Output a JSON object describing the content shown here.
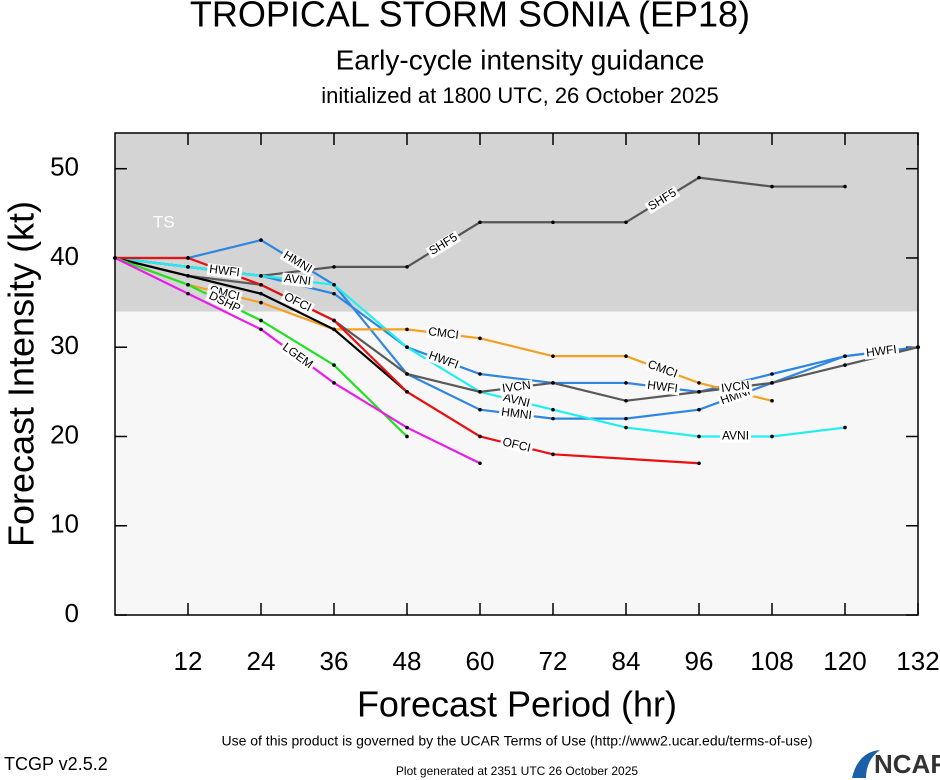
{
  "chart_data": {
    "type": "line",
    "title": "TROPICAL STORM SONIA (EP18)",
    "subtitle": "Early-cycle intensity guidance",
    "init_text": "initialized at 1800 UTC, 26 October 2025",
    "x_label": "Forecast Period (hr)",
    "y_label": "Forecast Intensity (kt)",
    "xlim": [
      0,
      132
    ],
    "xticks": [
      12,
      24,
      36,
      48,
      60,
      72,
      84,
      96,
      108,
      120,
      132
    ],
    "ylim": [
      0,
      54
    ],
    "yticks": [
      0,
      10,
      20,
      30,
      40,
      50
    ],
    "bands": [
      {
        "label": "TS",
        "from": 34,
        "to": 54,
        "color": "#d4d4d4"
      }
    ],
    "background": "#f7f7f7",
    "series": [
      {
        "name": "SHF5",
        "color": "#555555",
        "x": [
          0,
          12,
          24,
          36,
          48,
          60,
          72,
          84,
          96,
          108,
          120
        ],
        "values": [
          40,
          39,
          38,
          39,
          39,
          44,
          44,
          44,
          49,
          48,
          48
        ]
      },
      {
        "name": "HMNI",
        "color": "#2f86e0",
        "x": [
          0,
          12,
          24,
          36,
          48,
          60,
          72,
          84,
          96,
          108,
          120,
          132
        ],
        "values": [
          40,
          40,
          42,
          37,
          27,
          23,
          22,
          22,
          23,
          26,
          29,
          30
        ]
      },
      {
        "name": "HWFI",
        "color": "#2f86e0",
        "x": [
          0,
          12,
          24,
          36,
          48,
          60,
          72,
          84,
          96,
          108,
          120,
          132
        ],
        "values": [
          40,
          39,
          38,
          36,
          30,
          27,
          26,
          26,
          25,
          27,
          29,
          30
        ]
      },
      {
        "name": "AVNI",
        "color": "#22eef0",
        "x": [
          0,
          12,
          24,
          36,
          48,
          60,
          72,
          84,
          96,
          108,
          120
        ],
        "values": [
          40,
          39,
          38,
          37,
          30,
          25,
          23,
          21,
          20,
          20,
          21
        ]
      },
      {
        "name": "CMCI",
        "color": "#f5a022",
        "x": [
          0,
          12,
          24,
          36,
          48,
          60,
          72,
          84,
          96,
          108
        ],
        "values": [
          40,
          37,
          35,
          32,
          32,
          31,
          29,
          29,
          26,
          24
        ]
      },
      {
        "name": "IVCN",
        "color": "#5a5a5a",
        "x": [
          0,
          12,
          24,
          36,
          48,
          60,
          72,
          84,
          96,
          108,
          120,
          132
        ],
        "values": [
          40,
          38,
          37,
          33,
          27,
          25,
          26,
          24,
          25,
          26,
          28,
          30
        ]
      },
      {
        "color": "#000000",
        "x": [
          0,
          12,
          24,
          36,
          48
        ],
        "values": [
          40,
          38,
          36,
          32,
          25
        ]
      },
      {
        "name": "OFCI",
        "color": "#e81010",
        "x": [
          0,
          12,
          24,
          36,
          48,
          60,
          72,
          96
        ],
        "values": [
          40,
          40,
          37,
          33,
          25,
          20,
          18,
          17
        ]
      },
      {
        "name": "DSHP",
        "color": "#22e022",
        "x": [
          0,
          12,
          24,
          36,
          48
        ],
        "values": [
          40,
          37,
          33,
          28,
          20
        ]
      },
      {
        "name": "LGEM",
        "color": "#e81ee8",
        "x": [
          0,
          12,
          24,
          36,
          48,
          60
        ],
        "values": [
          40,
          36,
          32,
          26,
          21,
          17
        ]
      }
    ],
    "terms": "Use of this product is governed by the UCAR Terms of Use (http://www2.ucar.edu/terms-of-use)",
    "version": "TCGP v2.5.2",
    "generated": "Plot generated at 2351 UTC   26 October 2025",
    "logo": "NCAR"
  }
}
